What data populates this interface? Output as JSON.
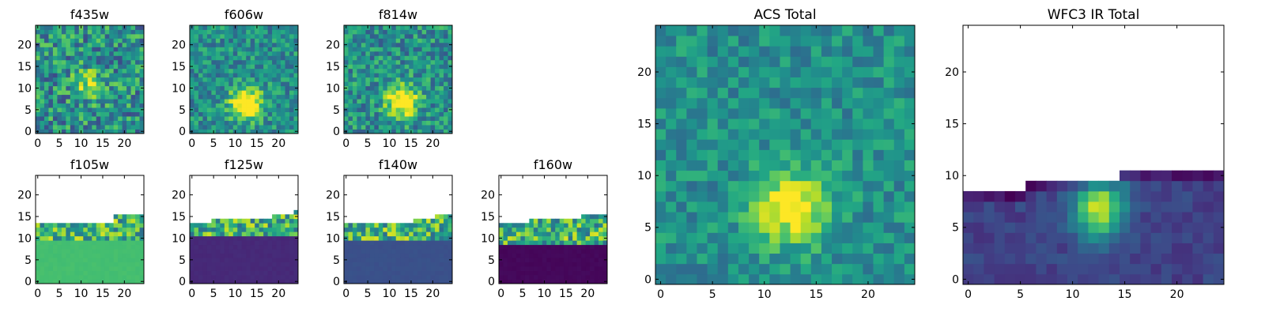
{
  "figure": {
    "description_colormap": "viridis"
  },
  "chart_data": [
    {
      "id": "f435w",
      "type": "heatmap",
      "title": "f435w",
      "xlim": [
        -0.5,
        24.5
      ],
      "ylim": [
        -0.5,
        24.5
      ],
      "xticks": [
        "0",
        "5",
        "10",
        "15",
        "20"
      ],
      "yticks": [
        "0",
        "5",
        "10",
        "15",
        "20"
      ],
      "grid_size": 25,
      "valid_rows_top": 24,
      "pattern": "noisy_blob",
      "blob_center": [
        12,
        11
      ],
      "blob_strength": 0.35,
      "noise_level": 0.55,
      "seed": 11
    },
    {
      "id": "f606w",
      "type": "heatmap",
      "title": "f606w",
      "xlim": [
        -0.5,
        24.5
      ],
      "ylim": [
        -0.5,
        24.5
      ],
      "xticks": [
        "0",
        "5",
        "10",
        "15",
        "20"
      ],
      "yticks": [
        "0",
        "5",
        "10",
        "15",
        "20"
      ],
      "grid_size": 25,
      "valid_rows_top": 24,
      "pattern": "noisy_blob",
      "blob_center": [
        12.5,
        6.5
      ],
      "blob_strength": 0.75,
      "noise_level": 0.4,
      "seed": 23
    },
    {
      "id": "f814w",
      "type": "heatmap",
      "title": "f814w",
      "xlim": [
        -0.5,
        24.5
      ],
      "ylim": [
        -0.5,
        24.5
      ],
      "xticks": [
        "0",
        "5",
        "10",
        "15",
        "20"
      ],
      "yticks": [
        "0",
        "5",
        "10",
        "15",
        "20"
      ],
      "grid_size": 25,
      "valid_rows_top": 24,
      "pattern": "noisy_blob",
      "blob_center": [
        13,
        7
      ],
      "blob_strength": 0.7,
      "noise_level": 0.45,
      "seed": 37
    },
    {
      "id": "f105w",
      "type": "heatmap",
      "title": "f105w",
      "xlim": [
        -0.5,
        24.5
      ],
      "ylim": [
        -0.5,
        24.5
      ],
      "xticks": [
        "0",
        "5",
        "10",
        "15",
        "20"
      ],
      "yticks": [
        "0",
        "5",
        "10",
        "15",
        "20"
      ],
      "grid_size": 25,
      "pattern": "ir_band",
      "fill_value": 0.7,
      "fill_top": 9,
      "band_rows": [
        10,
        13
      ],
      "band_top_profile": [
        13,
        13,
        13,
        13,
        13,
        13,
        13,
        13,
        13,
        13,
        13,
        13,
        13,
        13,
        13,
        13,
        13,
        13,
        15,
        15,
        15,
        15,
        15,
        15,
        15
      ],
      "seed": 41
    },
    {
      "id": "f125w",
      "type": "heatmap",
      "title": "f125w",
      "xlim": [
        -0.5,
        24.5
      ],
      "ylim": [
        -0.5,
        24.5
      ],
      "xticks": [
        "0",
        "5",
        "10",
        "15",
        "20"
      ],
      "yticks": [
        "0",
        "5",
        "10",
        "15",
        "20"
      ],
      "grid_size": 25,
      "pattern": "ir_band",
      "fill_value": 0.12,
      "fill_top": 10,
      "band_rows": [
        11,
        14
      ],
      "band_top_profile": [
        13,
        13,
        13,
        13,
        13,
        14,
        14,
        14,
        14,
        14,
        14,
        14,
        14,
        14,
        14,
        14,
        14,
        14,
        14,
        15,
        15,
        15,
        15,
        15,
        16
      ],
      "seed": 53
    },
    {
      "id": "f140w",
      "type": "heatmap",
      "title": "f140w",
      "xlim": [
        -0.5,
        24.5
      ],
      "ylim": [
        -0.5,
        24.5
      ],
      "xticks": [
        "0",
        "5",
        "10",
        "15",
        "20"
      ],
      "yticks": [
        "0",
        "5",
        "10",
        "15",
        "20"
      ],
      "grid_size": 25,
      "pattern": "ir_band",
      "fill_value": 0.25,
      "fill_top": 9,
      "band_rows": [
        10,
        13
      ],
      "band_top_profile": [
        13,
        13,
        13,
        13,
        13,
        13,
        13,
        13,
        13,
        13,
        13,
        13,
        13,
        13,
        13,
        13,
        14,
        14,
        14,
        14,
        14,
        15,
        15,
        15,
        15
      ],
      "seed": 67
    },
    {
      "id": "f160w",
      "type": "heatmap",
      "title": "f160w",
      "xlim": [
        -0.5,
        24.5
      ],
      "ylim": [
        -0.5,
        24.5
      ],
      "xticks": [
        "0",
        "5",
        "10",
        "15",
        "20"
      ],
      "yticks": [
        "0",
        "5",
        "10",
        "15",
        "20"
      ],
      "grid_size": 25,
      "pattern": "ir_band",
      "fill_value": 0.02,
      "fill_top": 8,
      "band_rows": [
        9,
        13
      ],
      "band_top_profile": [
        13,
        13,
        13,
        13,
        13,
        13,
        13,
        14,
        14,
        14,
        14,
        14,
        14,
        14,
        14,
        14,
        14,
        14,
        14,
        15,
        15,
        15,
        15,
        15,
        15
      ],
      "seed": 79
    },
    {
      "id": "acs_total",
      "type": "heatmap",
      "title": "ACS Total",
      "xlim": [
        -0.5,
        24.5
      ],
      "ylim": [
        -0.5,
        24.5
      ],
      "xticks": [
        "0",
        "5",
        "10",
        "15",
        "20"
      ],
      "yticks": [
        "0",
        "5",
        "10",
        "15",
        "20"
      ],
      "grid_size": 25,
      "valid_rows_top": 24,
      "pattern": "noisy_blob",
      "blob_center": [
        12.5,
        7
      ],
      "blob_strength": 0.55,
      "noise_level": 0.3,
      "seed": 97
    },
    {
      "id": "wfc3_ir_total",
      "type": "heatmap",
      "title": "WFC3 IR Total",
      "xlim": [
        -0.5,
        24.5
      ],
      "ylim": [
        -0.5,
        24.5
      ],
      "xticks": [
        "0",
        "5",
        "10",
        "15",
        "20"
      ],
      "yticks": [
        "0",
        "5",
        "10",
        "15",
        "20"
      ],
      "grid_size": 25,
      "pattern": "ir_total",
      "top_profile": [
        8,
        8,
        8,
        8,
        8,
        8,
        9,
        9,
        9,
        9,
        9,
        9,
        9,
        9,
        9,
        10,
        10,
        10,
        10,
        10,
        10,
        10,
        10,
        10,
        10
      ],
      "blob_center": [
        12.5,
        7
      ],
      "seed": 101
    }
  ]
}
